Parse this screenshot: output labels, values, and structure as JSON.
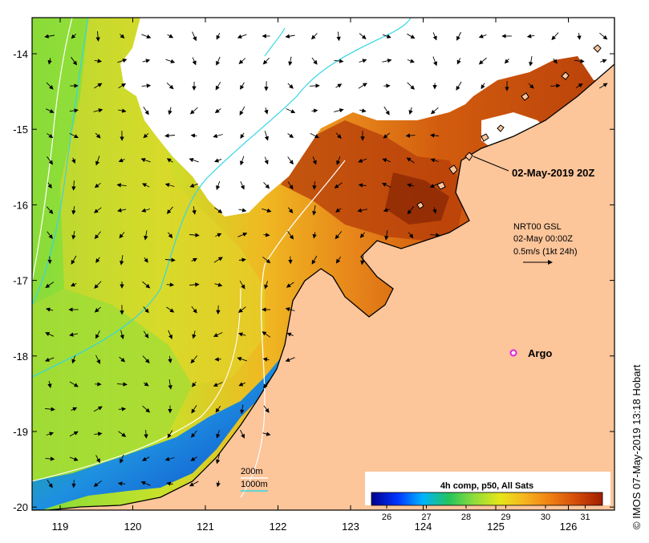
{
  "map": {
    "colors": {
      "land": "#fcc59a",
      "no_data": "#ffffff",
      "border": "#000000",
      "contour_200m": "#ffffff",
      "contour_1000m": "#33d6e6",
      "argo_marker": "#e022e0"
    },
    "lon_ticks": [
      "119",
      "120",
      "121",
      "122",
      "123",
      "124",
      "125",
      "126"
    ],
    "lat_ticks": [
      "-14",
      "-15",
      "-16",
      "-17",
      "-18",
      "-19",
      "-20"
    ],
    "timestamp_label": "02-May-2019 20Z",
    "current_info": {
      "line1": "NRT00 GSL",
      "line2": "02-May 00:00Z",
      "line3": "0.5m/s (1kt 24h)"
    },
    "argo_label": "Argo",
    "legend_contours": {
      "c200": "200m",
      "c1000": "1000m"
    },
    "colorbar": {
      "title": "4h comp, p50, All Sats",
      "tick_labels": [
        "26",
        "27",
        "28",
        "29",
        "30",
        "31"
      ],
      "stops": [
        "#00008c",
        "#0033ff",
        "#00b4ff",
        "#22c45e",
        "#8fdc3a",
        "#e6e61a",
        "#f7b31e",
        "#ef7d12",
        "#d24b08",
        "#a01e00"
      ]
    },
    "credit": "© IMOS 07-May-2019 13:18 Hobart"
  }
}
